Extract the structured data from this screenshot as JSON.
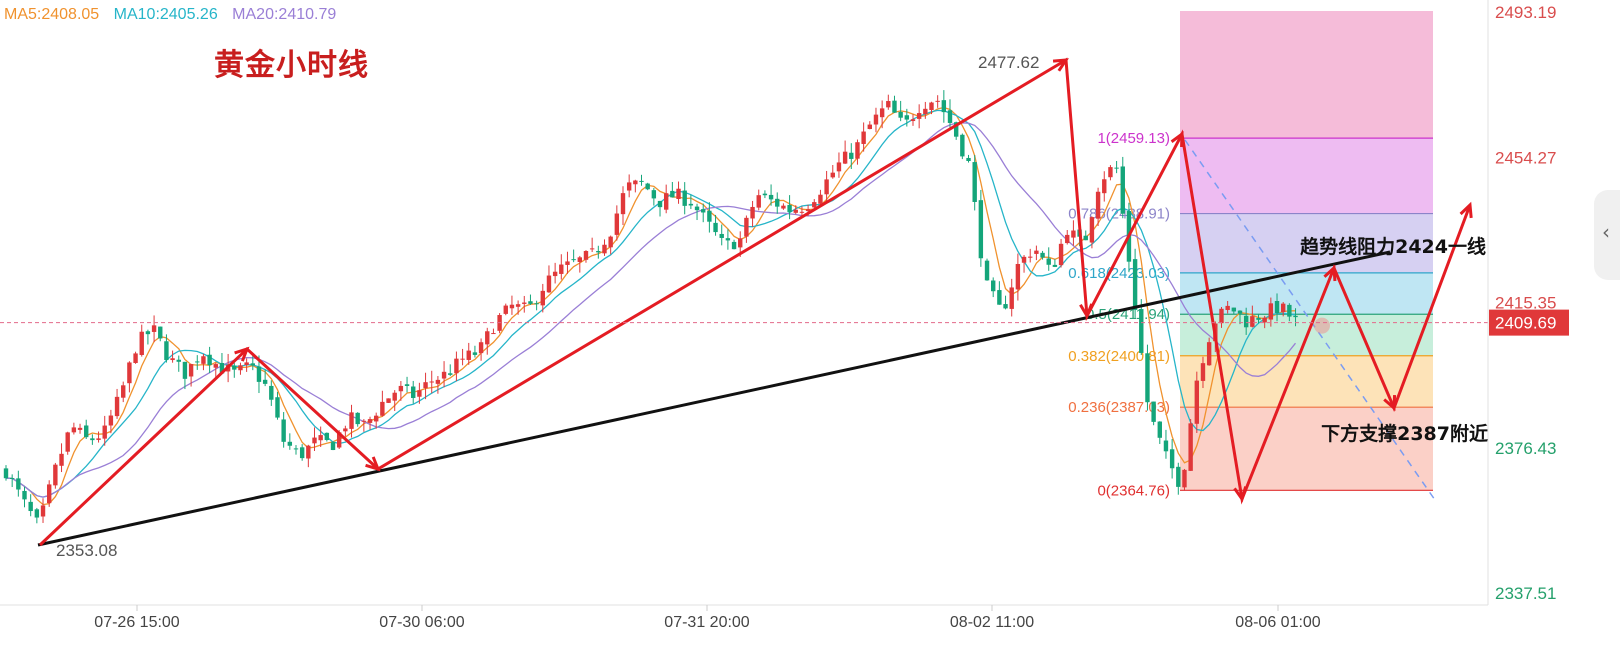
{
  "legend": [
    {
      "label": "MA5:2408.05",
      "color": "#f0922e"
    },
    {
      "label": "MA10:2405.26",
      "color": "#26b5c9"
    },
    {
      "label": "MA20:2410.79",
      "color": "#9a7fd6"
    }
  ],
  "title": "黄金小时线",
  "side_tab_icon": "chevron-left-icon",
  "chart_data": {
    "type": "candlestick",
    "title": "黄金小时线",
    "ylim": [
      2330,
      2500
    ],
    "yticks": [
      {
        "label": "2493.19",
        "value": 2493.19,
        "color": "#d94d4d"
      },
      {
        "label": "2454.27",
        "value": 2454.27,
        "color": "#d94d4d"
      },
      {
        "label": "2415.35",
        "value": 2415.35,
        "color": "#d94d4d"
      },
      {
        "label": "2376.43",
        "value": 2376.43,
        "color": "#24a06b"
      },
      {
        "label": "2337.51",
        "value": 2337.51,
        "color": "#24a06b"
      }
    ],
    "current_price": {
      "label": "2409.69",
      "value": 2409.69
    },
    "xticks": [
      "07-26 15:00",
      "07-30 06:00",
      "07-31 20:00",
      "08-02 11:00",
      "08-06 01:00"
    ],
    "annotations": {
      "high": "2477.62",
      "low": "2353.08"
    },
    "fibonacci": {
      "levels": [
        {
          "label": "1(2459.13)",
          "value": 2459.13,
          "color": "#cc33cc"
        },
        {
          "label": "0.786(2438.91)",
          "value": 2438.91,
          "color": "#8c84c9"
        },
        {
          "label": "0.618(2423.03)",
          "value": 2423.03,
          "color": "#2fa6c9"
        },
        {
          "label": "0.5(2411.94)",
          "value": 2411.94,
          "color": "#2aa37a"
        },
        {
          "label": "0.382(2400.81)",
          "value": 2400.81,
          "color": "#f0a020"
        },
        {
          "label": "0.236(2387.03)",
          "value": 2387.03,
          "color": "#f07040"
        },
        {
          "label": "0(2364.76)",
          "value": 2364.76,
          "color": "#e03030"
        }
      ]
    },
    "trendline_text": "趋势线阻力2424一线",
    "support_text": "下方支撑2387附近",
    "price_path": [
      2370,
      2362,
      2355,
      2370,
      2382,
      2378,
      2380,
      2390,
      2404,
      2408,
      2400,
      2396,
      2402,
      2398,
      2396,
      2398,
      2392,
      2378,
      2374,
      2378,
      2377,
      2384,
      2382,
      2388,
      2392,
      2390,
      2394,
      2396,
      2400,
      2402,
      2410,
      2414,
      2413,
      2420,
      2424,
      2426,
      2428,
      2434,
      2446,
      2447,
      2442,
      2444,
      2442,
      2436,
      2430,
      2432,
      2444,
      2442,
      2440,
      2441,
      2446,
      2452,
      2456,
      2463,
      2468,
      2462,
      2468,
      2470,
      2462,
      2452,
      2420,
      2412,
      2425,
      2430,
      2423,
      2435,
      2430,
      2448,
      2452,
      2420,
      2386,
      2374,
      2366,
      2396,
      2410,
      2414,
      2410,
      2412,
      2414,
      2410
    ]
  }
}
